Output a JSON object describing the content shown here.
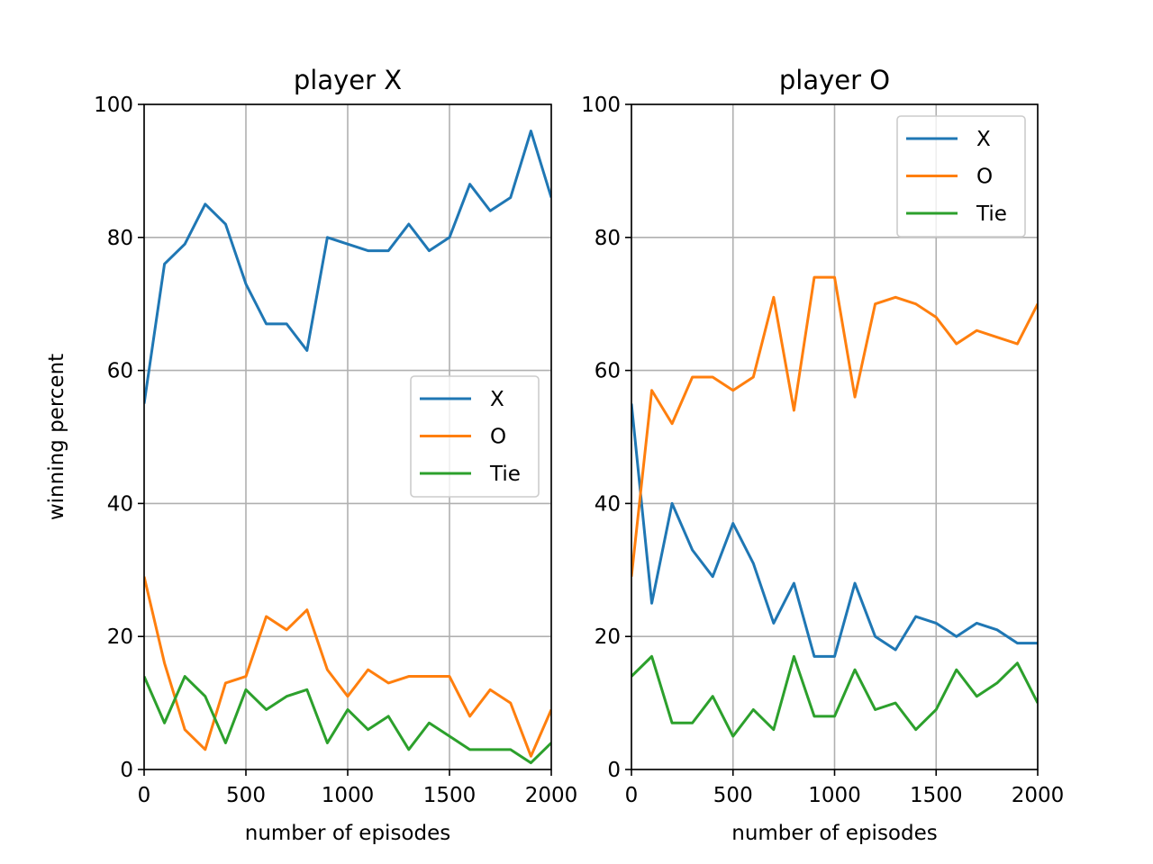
{
  "chart_data": [
    {
      "type": "line",
      "title": "player X",
      "xlabel": "number of episodes",
      "ylabel": "winning percent",
      "xlim": [
        0,
        2000
      ],
      "ylim": [
        0,
        100
      ],
      "xticks": [
        0,
        500,
        1000,
        1500,
        2000
      ],
      "yticks": [
        0,
        20,
        40,
        60,
        80,
        100
      ],
      "grid": true,
      "legend": "center-right",
      "x": [
        0,
        100,
        200,
        300,
        400,
        500,
        600,
        700,
        800,
        900,
        1000,
        1100,
        1200,
        1300,
        1400,
        1500,
        1600,
        1700,
        1800,
        1900,
        2000
      ],
      "series": [
        {
          "name": "X",
          "color": "#1f77b4",
          "values": [
            55,
            76,
            79,
            85,
            82,
            73,
            67,
            67,
            63,
            80,
            79,
            78,
            78,
            82,
            78,
            80,
            88,
            84,
            86,
            96,
            86
          ]
        },
        {
          "name": "O",
          "color": "#ff7f0e",
          "values": [
            29,
            16,
            6,
            3,
            13,
            14,
            23,
            21,
            24,
            15,
            11,
            15,
            13,
            14,
            14,
            14,
            8,
            12,
            10,
            2,
            9
          ]
        },
        {
          "name": "Tie",
          "color": "#2ca02c",
          "values": [
            14,
            7,
            14,
            11,
            4,
            12,
            9,
            11,
            12,
            4,
            9,
            6,
            8,
            3,
            7,
            5,
            3,
            3,
            3,
            1,
            4
          ]
        }
      ]
    },
    {
      "type": "line",
      "title": "player O",
      "xlabel": "number of episodes",
      "ylabel": "",
      "xlim": [
        0,
        2000
      ],
      "ylim": [
        0,
        100
      ],
      "xticks": [
        0,
        500,
        1000,
        1500,
        2000
      ],
      "yticks": [
        0,
        20,
        40,
        60,
        80,
        100
      ],
      "grid": true,
      "legend": "top-right",
      "x": [
        0,
        100,
        200,
        300,
        400,
        500,
        600,
        700,
        800,
        900,
        1000,
        1100,
        1200,
        1300,
        1400,
        1500,
        1600,
        1700,
        1800,
        1900,
        2000
      ],
      "series": [
        {
          "name": "X",
          "color": "#1f77b4",
          "values": [
            55,
            25,
            40,
            33,
            29,
            37,
            31,
            22,
            28,
            17,
            17,
            28,
            20,
            18,
            23,
            22,
            20,
            22,
            21,
            19,
            19
          ]
        },
        {
          "name": "O",
          "color": "#ff7f0e",
          "values": [
            29,
            57,
            52,
            59,
            59,
            57,
            59,
            71,
            54,
            74,
            74,
            56,
            70,
            71,
            70,
            68,
            64,
            66,
            65,
            64,
            70
          ]
        },
        {
          "name": "Tie",
          "color": "#2ca02c",
          "values": [
            14,
            17,
            7,
            7,
            11,
            5,
            9,
            6,
            17,
            8,
            8,
            15,
            9,
            10,
            6,
            9,
            15,
            11,
            13,
            16,
            10
          ]
        }
      ]
    }
  ]
}
